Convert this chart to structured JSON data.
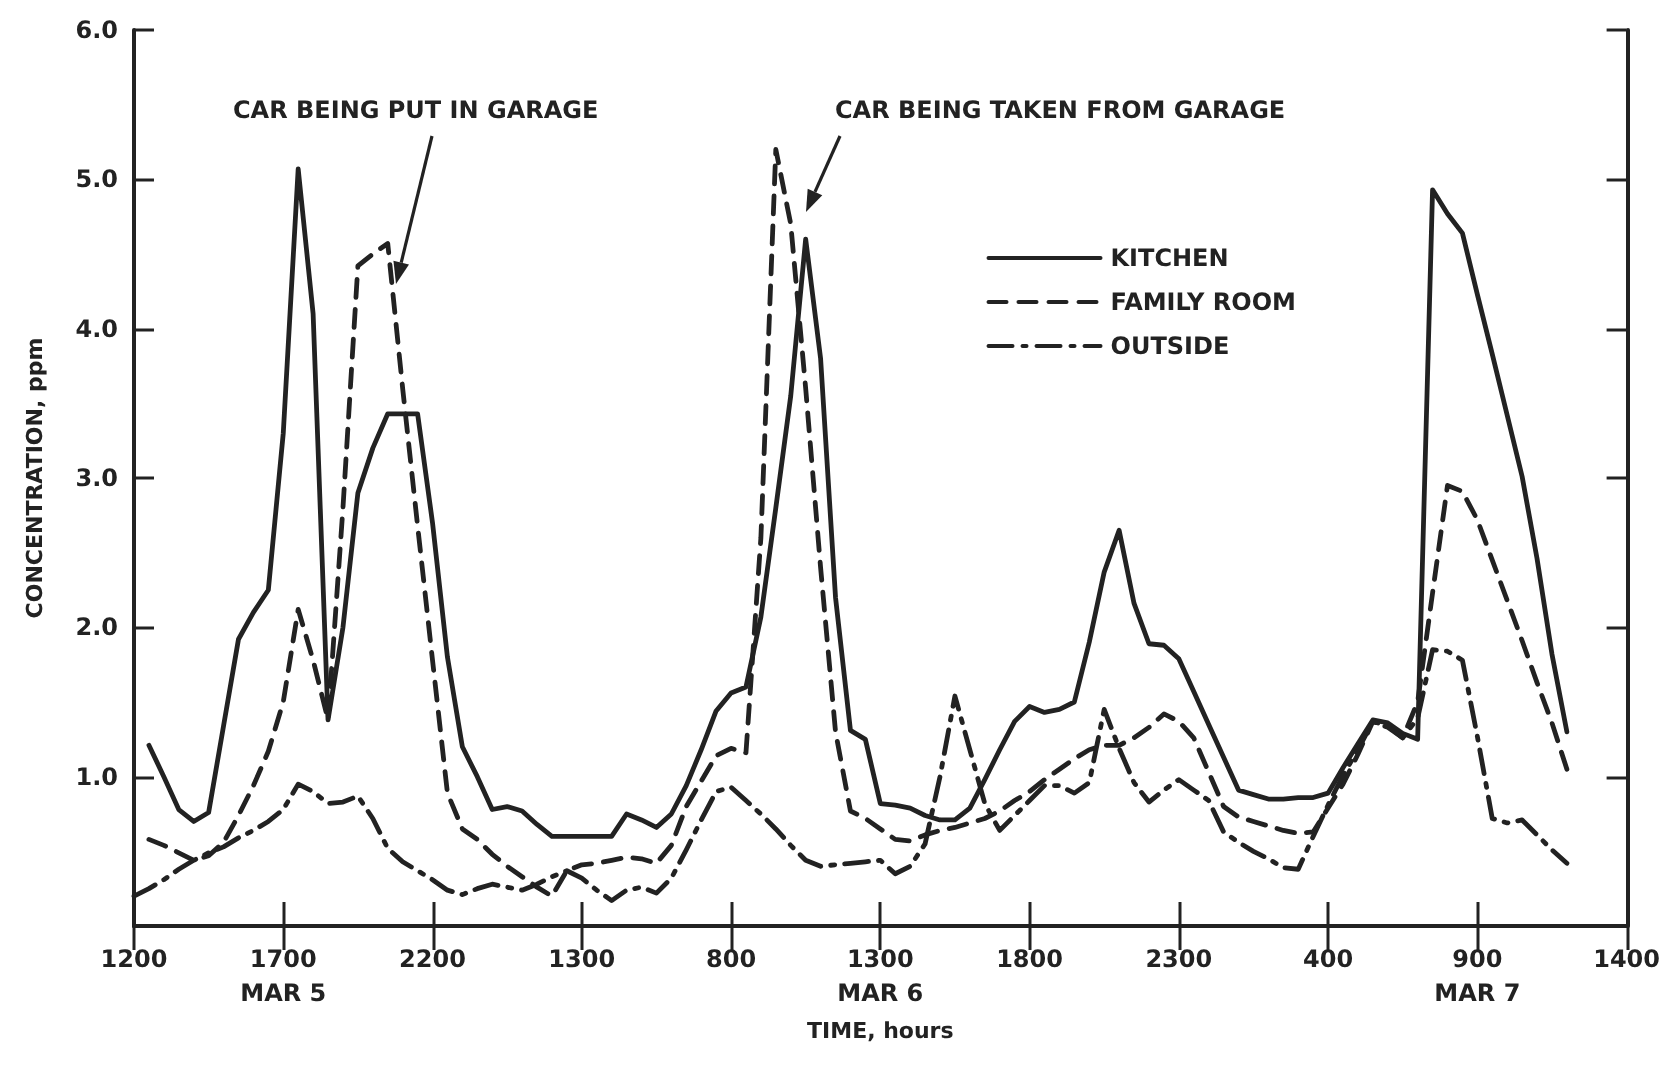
{
  "chart_data": {
    "type": "line",
    "xlabel": "TIME, hours",
    "ylabel": "CONCENTRATION, ppm",
    "categories": [
      "1200",
      null,
      null,
      null,
      null,
      null,
      null,
      null,
      null,
      null,
      "1700\nMAR 5",
      null,
      null,
      null,
      null,
      null,
      null,
      null,
      null,
      null,
      "2200",
      null,
      null,
      null,
      null,
      null,
      null,
      null,
      null,
      null,
      "1300",
      null,
      null,
      null,
      null,
      null,
      null,
      null,
      null,
      null,
      "800",
      null,
      null,
      null,
      null,
      null,
      null,
      null,
      null,
      null,
      "1300\nMAR 6",
      null,
      null,
      null,
      null,
      null,
      null,
      null,
      null,
      null,
      "1800",
      null,
      null,
      null,
      null,
      null,
      null,
      null,
      null,
      null,
      "2300",
      null,
      null,
      null,
      null,
      null,
      null,
      null,
      null,
      null,
      "400",
      null,
      null,
      null,
      null,
      null,
      null,
      null,
      null,
      null,
      "900\nMAR 7",
      null,
      null,
      null,
      null,
      null,
      null,
      null,
      null,
      null,
      "1400"
    ],
    "ylim": [
      0,
      6
    ],
    "yticks": [
      {
        "value": 1,
        "label": "1.0"
      },
      {
        "value": 2,
        "label": "2.0"
      },
      {
        "value": 3,
        "label": "3.0"
      },
      {
        "value": 4,
        "label": "4.0"
      },
      {
        "value": 5,
        "label": "5.0"
      },
      {
        "value": 6,
        "label": "6.0"
      }
    ],
    "grid": false,
    "legend": "top right",
    "marker": "none",
    "annotations": [
      "CAR BEING PUT IN GARAGE",
      "CAR BEING TAKEN FROM GARAGE"
    ],
    "series": [
      {
        "name": "KITCHEN",
        "color": "#222222",
        "line_style": "solid",
        "values": [
          null,
          1.21,
          1.0,
          0.78,
          0.7,
          0.76,
          1.34,
          1.92,
          2.1,
          2.25,
          3.3,
          5.07,
          4.1,
          1.38,
          2.0,
          2.9,
          3.2,
          3.43,
          3.43,
          3.43,
          2.7,
          1.8,
          1.2,
          1.0,
          0.78,
          0.8,
          0.77,
          0.68,
          0.6,
          0.6,
          0.6,
          0.6,
          0.6,
          0.75,
          0.71,
          0.66,
          0.75,
          0.94,
          1.18,
          1.44,
          1.56,
          1.6,
          2.07,
          2.8,
          3.55,
          4.6,
          3.8,
          2.2,
          1.31,
          1.25,
          0.82,
          0.81,
          0.79,
          0.74,
          0.71,
          0.71,
          0.79,
          0.98,
          1.18,
          1.37,
          1.47,
          1.43,
          1.45,
          1.5,
          1.9,
          2.37,
          2.65,
          2.16,
          1.89,
          1.88,
          1.79,
          1.57,
          1.35,
          1.13,
          0.91,
          0.88,
          0.85,
          0.85,
          0.86,
          0.86,
          0.89,
          1.06,
          1.22,
          1.38,
          1.36,
          1.29,
          1.25,
          4.93,
          4.77,
          4.64,
          4.23,
          3.83,
          3.42,
          3.01,
          2.46,
          1.82,
          1.3,
          null,
          null,
          null,
          null
        ]
      },
      {
        "name": "FAMILY ROOM",
        "color": "#222222",
        "line_style": "dashed",
        "values": [
          null,
          0.58,
          0.54,
          0.49,
          0.44,
          0.47,
          0.56,
          0.74,
          0.94,
          1.17,
          1.5,
          2.12,
          1.78,
          1.38,
          2.8,
          4.42,
          4.5,
          4.57,
          3.6,
          2.68,
          1.78,
          0.89,
          0.65,
          0.58,
          0.48,
          0.4,
          0.33,
          0.26,
          0.2,
          0.37,
          0.41,
          0.42,
          0.44,
          0.46,
          0.45,
          0.42,
          0.54,
          0.8,
          0.97,
          1.14,
          1.19,
          1.16,
          2.6,
          5.2,
          4.7,
          3.6,
          2.4,
          1.3,
          0.77,
          0.72,
          0.65,
          0.58,
          0.57,
          0.61,
          0.64,
          0.66,
          0.69,
          0.72,
          0.77,
          0.84,
          0.9,
          0.98,
          1.05,
          1.12,
          1.18,
          1.21,
          1.21,
          1.26,
          1.33,
          1.42,
          1.37,
          1.26,
          1.03,
          0.8,
          0.73,
          0.7,
          0.67,
          0.64,
          0.62,
          0.63,
          0.79,
          0.95,
          1.15,
          1.37,
          1.34,
          1.26,
          1.5,
          2.23,
          2.95,
          2.91,
          2.72,
          2.45,
          2.18,
          1.91,
          1.63,
          1.36,
          1.05,
          null,
          null,
          null,
          null
        ]
      },
      {
        "name": "OUTSIDE",
        "color": "#222222",
        "line_style": "dashdot",
        "values": [
          0.2,
          0.25,
          0.31,
          0.38,
          0.44,
          0.49,
          0.53,
          0.59,
          0.64,
          0.7,
          0.78,
          0.95,
          0.9,
          0.82,
          0.83,
          0.87,
          0.72,
          0.52,
          0.43,
          0.37,
          0.31,
          0.24,
          0.21,
          0.25,
          0.28,
          0.26,
          0.24,
          0.28,
          0.33,
          0.37,
          0.32,
          0.24,
          0.17,
          0.24,
          0.26,
          0.22,
          0.32,
          0.51,
          0.71,
          0.9,
          0.93,
          0.84,
          0.75,
          0.65,
          0.54,
          0.44,
          0.4,
          0.41,
          0.42,
          0.43,
          0.44,
          0.35,
          0.4,
          0.55,
          1.0,
          1.54,
          1.18,
          0.82,
          0.64,
          0.74,
          0.84,
          0.94,
          0.94,
          0.89,
          0.96,
          1.45,
          1.19,
          0.96,
          0.83,
          0.91,
          0.98,
          0.91,
          0.84,
          0.63,
          0.56,
          0.5,
          0.45,
          0.39,
          0.38,
          0.6,
          0.81,
          1.01,
          1.18,
          1.37,
          1.33,
          1.26,
          1.39,
          1.85,
          1.84,
          1.78,
          1.27,
          0.72,
          0.69,
          0.71,
          0.61,
          0.51,
          0.42,
          null,
          null,
          null,
          null
        ]
      }
    ]
  }
}
